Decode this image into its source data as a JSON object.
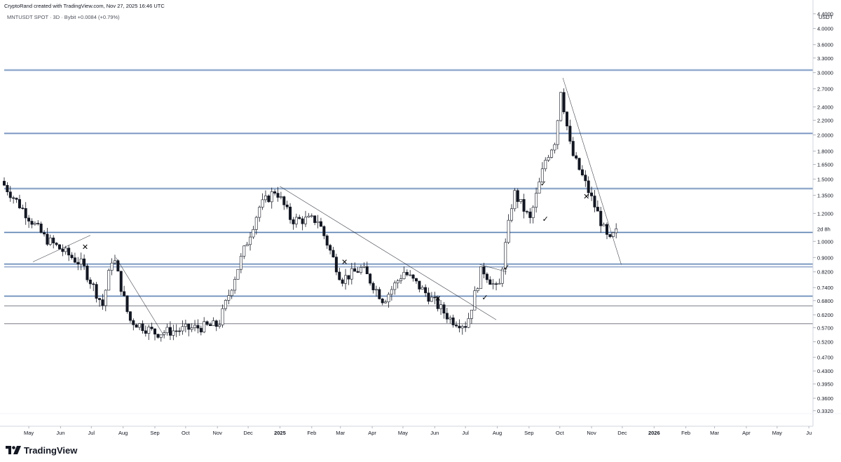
{
  "header": {
    "credit": "CryptoRand created with TradingView.com, Nov 27, 2025 16:46 UTC",
    "symbol_line": "MNTUSDT SPOT · 3D · Bybit  +0.0084 (+0.79%)"
  },
  "footer": {
    "brand": "TradingView"
  },
  "chart_data": {
    "type": "candlestick",
    "scale": "log",
    "unit": "USDT",
    "ylim": [
      0.3,
      4.6
    ],
    "y_ticks": [
      4.4,
      4.0,
      3.6,
      3.3,
      3.0,
      2.7,
      2.4,
      2.2,
      2.0,
      1.8,
      1.65,
      1.5,
      1.35,
      1.2,
      1.0,
      0.9,
      0.82,
      0.74,
      0.68,
      0.62,
      0.57,
      0.52,
      0.47,
      0.43,
      0.395,
      0.36,
      0.332
    ],
    "y_tick_labels": [
      "4.4000",
      "4.0000",
      "3.6000",
      "3.3000",
      "3.0000",
      "2.7000",
      "2.4000",
      "2.2000",
      "2.0000",
      "1.8000",
      "1.6500",
      "1.5000",
      "1.3500",
      "1.2000",
      "1.0000",
      "0.9000",
      "0.8200",
      "0.7400",
      "0.6800",
      "0.6200",
      "0.5700",
      "0.5200",
      "0.4700",
      "0.4300",
      "0.3950",
      "0.3600",
      "0.3320"
    ],
    "x_labels": [
      {
        "label": "May",
        "date": "2024-05-01"
      },
      {
        "label": "Jun",
        "date": "2024-06-01"
      },
      {
        "label": "Jul",
        "date": "2024-07-01"
      },
      {
        "label": "Aug",
        "date": "2024-08-01"
      },
      {
        "label": "Sep",
        "date": "2024-09-01"
      },
      {
        "label": "Oct",
        "date": "2024-10-01"
      },
      {
        "label": "Nov",
        "date": "2024-11-01"
      },
      {
        "label": "Dec",
        "date": "2024-12-01"
      },
      {
        "label": "2025",
        "date": "2025-01-01",
        "bold": true
      },
      {
        "label": "Feb",
        "date": "2025-02-01"
      },
      {
        "label": "Mar",
        "date": "2025-03-01"
      },
      {
        "label": "Apr",
        "date": "2025-04-01"
      },
      {
        "label": "May",
        "date": "2025-05-01"
      },
      {
        "label": "Jun",
        "date": "2025-06-01"
      },
      {
        "label": "Jul",
        "date": "2025-07-01"
      },
      {
        "label": "Aug",
        "date": "2025-08-01"
      },
      {
        "label": "Sep",
        "date": "2025-09-01"
      },
      {
        "label": "Oct",
        "date": "2025-10-01"
      },
      {
        "label": "Nov",
        "date": "2025-11-01"
      },
      {
        "label": "Dec",
        "date": "2025-12-01"
      },
      {
        "label": "2026",
        "date": "2026-01-01",
        "bold": true
      },
      {
        "label": "Feb",
        "date": "2026-02-01"
      },
      {
        "label": "Mar",
        "date": "2026-03-01"
      },
      {
        "label": "Apr",
        "date": "2026-04-01"
      },
      {
        "label": "May",
        "date": "2026-05-01"
      },
      {
        "label": "Ju",
        "date": "2026-06-01"
      }
    ],
    "x_domain": [
      "2024-04-07",
      "2026-06-05"
    ],
    "countdown_label": "2d 8h",
    "key_prices": [
      {
        "date": "2024-04-07",
        "price": 1.48
      },
      {
        "date": "2024-05-20",
        "price": 1.02
      },
      {
        "date": "2024-06-25",
        "price": 0.86
      },
      {
        "date": "2024-07-15",
        "price": 0.66
      },
      {
        "date": "2024-07-25",
        "price": 0.92
      },
      {
        "date": "2024-08-10",
        "price": 0.6
      },
      {
        "date": "2024-09-05",
        "price": 0.55
      },
      {
        "date": "2024-10-15",
        "price": 0.57
      },
      {
        "date": "2024-11-05",
        "price": 0.58
      },
      {
        "date": "2024-11-25",
        "price": 0.86
      },
      {
        "date": "2024-12-15",
        "price": 1.25
      },
      {
        "date": "2024-12-31",
        "price": 1.4
      },
      {
        "date": "2025-01-15",
        "price": 1.15
      },
      {
        "date": "2025-02-10",
        "price": 1.15
      },
      {
        "date": "2025-03-05",
        "price": 0.78
      },
      {
        "date": "2025-03-25",
        "price": 0.84
      },
      {
        "date": "2025-04-15",
        "price": 0.68
      },
      {
        "date": "2025-05-05",
        "price": 0.82
      },
      {
        "date": "2025-05-25",
        "price": 0.72
      },
      {
        "date": "2025-06-20",
        "price": 0.6
      },
      {
        "date": "2025-07-05",
        "price": 0.58
      },
      {
        "date": "2025-07-20",
        "price": 0.84
      },
      {
        "date": "2025-08-05",
        "price": 0.72
      },
      {
        "date": "2025-08-20",
        "price": 1.38
      },
      {
        "date": "2025-09-05",
        "price": 1.15
      },
      {
        "date": "2025-09-20",
        "price": 1.7
      },
      {
        "date": "2025-09-30",
        "price": 1.95
      },
      {
        "date": "2025-10-05",
        "price": 2.7
      },
      {
        "date": "2025-10-15",
        "price": 1.8
      },
      {
        "date": "2025-10-25",
        "price": 1.55
      },
      {
        "date": "2025-11-10",
        "price": 1.2
      },
      {
        "date": "2025-11-21",
        "price": 0.99
      },
      {
        "date": "2025-11-27",
        "price": 1.06
      }
    ],
    "horizontal_levels": [
      {
        "price": 3.05,
        "style": "blue"
      },
      {
        "price": 2.02,
        "style": "blue"
      },
      {
        "price": 1.41,
        "style": "blue"
      },
      {
        "price": 1.06,
        "style": "blue"
      },
      {
        "price": 0.862,
        "style": "blue-double"
      },
      {
        "price": 0.7,
        "style": "blue"
      },
      {
        "price": 0.657,
        "style": "gray"
      },
      {
        "price": 0.585,
        "style": "gray"
      }
    ],
    "trendlines": [
      {
        "from": {
          "date": "2024-05-05",
          "price": 0.875
        },
        "to": {
          "date": "2024-06-30",
          "price": 1.04
        }
      },
      {
        "from": {
          "date": "2024-07-25",
          "price": 0.9
        },
        "to": {
          "date": "2024-09-10",
          "price": 0.54
        }
      },
      {
        "from": {
          "date": "2025-01-01",
          "price": 1.43
        },
        "to": {
          "date": "2025-07-31",
          "price": 0.6
        }
      },
      {
        "from": {
          "date": "2025-07-15",
          "price": 0.86
        },
        "to": {
          "date": "2025-08-10",
          "price": 0.82
        }
      },
      {
        "from": {
          "date": "2025-10-04",
          "price": 2.9
        },
        "to": {
          "date": "2025-11-30",
          "price": 0.86
        }
      }
    ],
    "markers": [
      {
        "symbol": "✕",
        "date": "2024-06-25",
        "price": 0.965
      },
      {
        "symbol": "✕",
        "date": "2025-03-05",
        "price": 0.875
      },
      {
        "symbol": "✕",
        "date": "2025-06-04",
        "price": 0.69
      },
      {
        "symbol": "✕",
        "date": "2025-10-27",
        "price": 1.34
      },
      {
        "symbol": "✓",
        "date": "2025-07-20",
        "price": 0.695
      },
      {
        "symbol": "✓",
        "date": "2025-08-10",
        "price": 0.845
      },
      {
        "symbol": "✓",
        "date": "2025-09-15",
        "price": 1.46
      },
      {
        "symbol": "✓",
        "date": "2025-09-17",
        "price": 1.16
      }
    ]
  }
}
